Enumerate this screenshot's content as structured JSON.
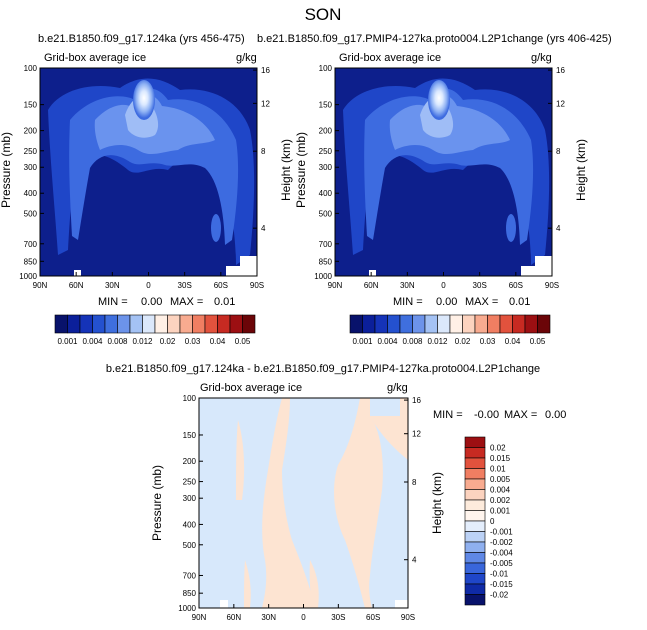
{
  "title": "SON",
  "colors": {
    "deep": "#0d1f8c",
    "mid": "#1f46c8",
    "light1": "#3d6be0",
    "light2": "#6a93ee",
    "light3": "#9fbdf6",
    "light4": "#cfe0fb",
    "core": "#eef5ff",
    "diffBlue": "#d7e8fb",
    "diffPeach": "#fde4d2",
    "white": "#ffffff"
  },
  "labels": {
    "var_name": "Grid-box average ice",
    "units": "g/kg",
    "ylabel_left": "Pressure (mb)",
    "ylabel_right": "Height (km)"
  },
  "panels": [
    {
      "id": "top-left",
      "case": "b.e21.B1850.f09_g17.124ka (yrs 456-475)",
      "min_text": "MIN =",
      "min_val": "0.00",
      "max_text": "MAX =",
      "max_val": "0.01"
    },
    {
      "id": "top-right",
      "case": "b.e21.B1850.f09_g17.PMIP4-127ka.proto004.L2P1change (yrs 406-425)",
      "min_text": "MIN =",
      "min_val": "0.00",
      "max_text": "MAX =",
      "max_val": "0.01"
    },
    {
      "id": "bottom-diff",
      "case": "b.e21.B1850.f09_g17.124ka - b.e21.B1850.f09_g17.PMIP4-127ka.proto004.L2P1change",
      "min_text": "MIN =",
      "min_val": "-0.00",
      "max_text": "MAX =",
      "max_val": "0.00"
    }
  ],
  "chart_data": {
    "type": "heatmap",
    "x_ticks": [
      "90N",
      "60N",
      "30N",
      "0",
      "30S",
      "60S",
      "90S"
    ],
    "pressure_ticks": [
      "100",
      "150",
      "200",
      "250",
      "300",
      "400",
      "500",
      "700",
      "850",
      "1000"
    ],
    "height_ticks": [
      "16",
      "12",
      "8",
      "4"
    ],
    "colorbar_top": {
      "levels": [
        "0.001",
        "0.002",
        "0.004",
        "0.006",
        "0.008",
        "0.01",
        "0.012",
        "0.015",
        "0.02",
        "0.025",
        "0.03",
        "0.035",
        "0.04",
        "0.045",
        "0.05"
      ],
      "labels": [
        "0.001",
        "0.004",
        "0.008",
        "0.012",
        "0.02",
        "0.03",
        "0.04",
        "0.05"
      ],
      "colors": [
        "#08126b",
        "#0b1f9a",
        "#1533b8",
        "#2451cf",
        "#3f6fde",
        "#6c93ea",
        "#a4c2f4",
        "#dbe8fb",
        "#fff0e6",
        "#fcd3bf",
        "#f8ab90",
        "#f07e62",
        "#e2523d",
        "#c72a22",
        "#9c0f12",
        "#6b0508"
      ]
    },
    "colorbar_diff": {
      "labels": [
        "0.02",
        "0.015",
        "0.01",
        "0.005",
        "0.004",
        "0.002",
        "0.001",
        "0",
        "-0.001",
        "-0.002",
        "-0.004",
        "-0.005",
        "-0.01",
        "-0.015",
        "-0.02"
      ],
      "colors": [
        "#9c0f12",
        "#c72a22",
        "#e2523d",
        "#f07e62",
        "#f8ab90",
        "#fcd3bf",
        "#fdebdc",
        "#fff5ee",
        "#e4eefc",
        "#bcd2f6",
        "#8fb0ef",
        "#5f88e6",
        "#3966db",
        "#1f46c8",
        "#0f2aa6",
        "#08126b"
      ]
    }
  }
}
